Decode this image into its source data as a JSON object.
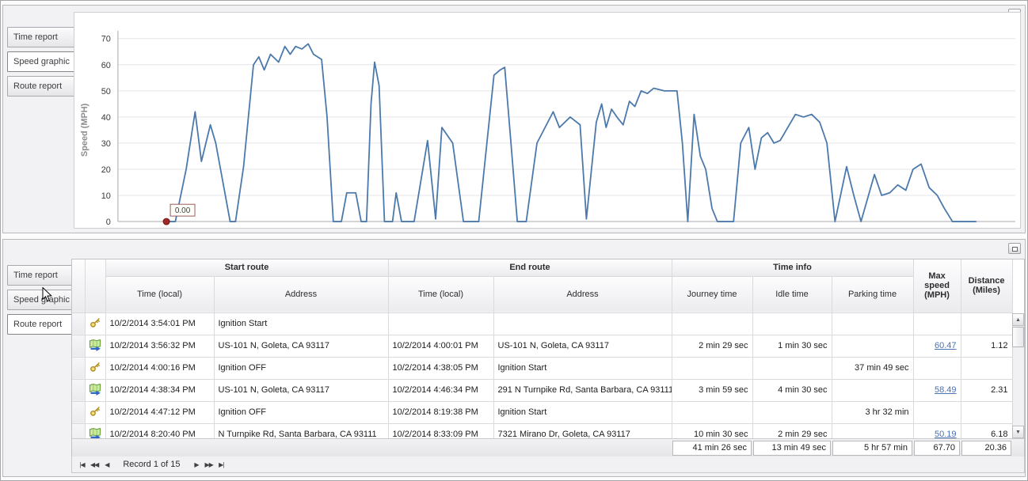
{
  "top_panel": {
    "tabs": [
      {
        "label": "Time report",
        "selected": false
      },
      {
        "label": "Speed graphic",
        "selected": true
      },
      {
        "label": "Route report",
        "selected": false
      }
    ]
  },
  "chart_data": {
    "type": "line",
    "title": "",
    "xlabel": "",
    "ylabel": "Speed (MPH)",
    "ylim": [
      0,
      70
    ],
    "yticks": [
      0,
      10,
      20,
      30,
      40,
      50,
      60,
      70
    ],
    "grid": true,
    "legend": "none",
    "line_color": "#4b79ab",
    "annotation": {
      "label": "0.00",
      "x": 0.054,
      "y": 0,
      "marker_color": "#a32828"
    },
    "points": [
      [
        0.052,
        0
      ],
      [
        0.064,
        0
      ],
      [
        0.076,
        20
      ],
      [
        0.086,
        42
      ],
      [
        0.093,
        23
      ],
      [
        0.103,
        37
      ],
      [
        0.109,
        30
      ],
      [
        0.125,
        0
      ],
      [
        0.131,
        0
      ],
      [
        0.14,
        21
      ],
      [
        0.151,
        60
      ],
      [
        0.157,
        63
      ],
      [
        0.163,
        58
      ],
      [
        0.17,
        64
      ],
      [
        0.179,
        61
      ],
      [
        0.186,
        67
      ],
      [
        0.192,
        64
      ],
      [
        0.198,
        67
      ],
      [
        0.205,
        66
      ],
      [
        0.212,
        68
      ],
      [
        0.218,
        64
      ],
      [
        0.227,
        62
      ],
      [
        0.233,
        40
      ],
      [
        0.24,
        0
      ],
      [
        0.249,
        0
      ],
      [
        0.255,
        11
      ],
      [
        0.265,
        11
      ],
      [
        0.271,
        0
      ],
      [
        0.277,
        0
      ],
      [
        0.282,
        45
      ],
      [
        0.286,
        61
      ],
      [
        0.291,
        52
      ],
      [
        0.297,
        0
      ],
      [
        0.306,
        0
      ],
      [
        0.31,
        11
      ],
      [
        0.316,
        0
      ],
      [
        0.33,
        0
      ],
      [
        0.345,
        31
      ],
      [
        0.354,
        1
      ],
      [
        0.361,
        36
      ],
      [
        0.373,
        30
      ],
      [
        0.385,
        0
      ],
      [
        0.402,
        0
      ],
      [
        0.419,
        56
      ],
      [
        0.426,
        58
      ],
      [
        0.431,
        59
      ],
      [
        0.438,
        30
      ],
      [
        0.445,
        0
      ],
      [
        0.455,
        0
      ],
      [
        0.467,
        30
      ],
      [
        0.485,
        42
      ],
      [
        0.492,
        36
      ],
      [
        0.504,
        40
      ],
      [
        0.515,
        37
      ],
      [
        0.522,
        1
      ],
      [
        0.533,
        38
      ],
      [
        0.539,
        45
      ],
      [
        0.544,
        36
      ],
      [
        0.55,
        43
      ],
      [
        0.556,
        40
      ],
      [
        0.563,
        37
      ],
      [
        0.57,
        46
      ],
      [
        0.576,
        44
      ],
      [
        0.583,
        50
      ],
      [
        0.59,
        49
      ],
      [
        0.597,
        51
      ],
      [
        0.609,
        50
      ],
      [
        0.623,
        50
      ],
      [
        0.629,
        30
      ],
      [
        0.635,
        0
      ],
      [
        0.642,
        41
      ],
      [
        0.649,
        25
      ],
      [
        0.655,
        20
      ],
      [
        0.662,
        5
      ],
      [
        0.668,
        0
      ],
      [
        0.686,
        0
      ],
      [
        0.694,
        30
      ],
      [
        0.703,
        36
      ],
      [
        0.71,
        20
      ],
      [
        0.717,
        32
      ],
      [
        0.724,
        34
      ],
      [
        0.731,
        30
      ],
      [
        0.738,
        31
      ],
      [
        0.755,
        41
      ],
      [
        0.764,
        40
      ],
      [
        0.773,
        41
      ],
      [
        0.782,
        38
      ],
      [
        0.79,
        30
      ],
      [
        0.799,
        0
      ],
      [
        0.812,
        21
      ],
      [
        0.82,
        10
      ],
      [
        0.828,
        0
      ],
      [
        0.843,
        18
      ],
      [
        0.851,
        10
      ],
      [
        0.86,
        11
      ],
      [
        0.869,
        14
      ],
      [
        0.878,
        12
      ],
      [
        0.886,
        20
      ],
      [
        0.895,
        22
      ],
      [
        0.904,
        13
      ],
      [
        0.913,
        10
      ],
      [
        0.921,
        5
      ],
      [
        0.93,
        0
      ],
      [
        0.956,
        0
      ]
    ]
  },
  "bottom_panel": {
    "tabs": [
      {
        "label": "Time report",
        "selected": false
      },
      {
        "label": "Speed graphic",
        "selected": false
      },
      {
        "label": "Route report",
        "selected": true
      }
    ],
    "grid": {
      "group_headers": [
        "Start route",
        "End route",
        "Time info"
      ],
      "columns": [
        "Time (local)",
        "Address",
        "Time (local)",
        "Address",
        "Journey time",
        "Idle time",
        "Parking time",
        "Max speed\n(MPH)",
        "Distance\n(Miles)"
      ],
      "rows": [
        {
          "icon": "key",
          "start_time": "10/2/2014 3:54:01 PM",
          "start_address": "Ignition Start",
          "end_time": "",
          "end_address": "",
          "journey": "",
          "idle": "",
          "parking": "",
          "max_speed": "",
          "distance": ""
        },
        {
          "icon": "route",
          "start_time": "10/2/2014 3:56:32 PM",
          "start_address": "US-101 N, Goleta, CA 93117",
          "end_time": "10/2/2014 4:00:01 PM",
          "end_address": "US-101 N, Goleta, CA 93117",
          "journey": "2 min 29 sec",
          "idle": "1 min 30 sec",
          "parking": "",
          "max_speed": "60.47",
          "distance": "1.12"
        },
        {
          "icon": "key",
          "start_time": "10/2/2014 4:00:16 PM",
          "start_address": "Ignition OFF",
          "end_time": "10/2/2014 4:38:05 PM",
          "end_address": "Ignition Start",
          "journey": "",
          "idle": "",
          "parking": "37 min 49 sec",
          "max_speed": "",
          "distance": ""
        },
        {
          "icon": "route",
          "start_time": "10/2/2014 4:38:34 PM",
          "start_address": "US-101 N, Goleta, CA 93117",
          "end_time": "10/2/2014 4:46:34 PM",
          "end_address": "291 N Turnpike Rd, Santa Barbara, CA 93111",
          "journey": "3 min 59 sec",
          "idle": "4 min 30 sec",
          "parking": "",
          "max_speed": "58.49",
          "distance": "2.31"
        },
        {
          "icon": "key",
          "start_time": "10/2/2014 4:47:12 PM",
          "start_address": "Ignition OFF",
          "end_time": "10/2/2014 8:19:38 PM",
          "end_address": "Ignition Start",
          "journey": "",
          "idle": "",
          "parking": "3 hr 32 min",
          "max_speed": "",
          "distance": ""
        },
        {
          "icon": "route",
          "start_time": "10/2/2014 8:20:40 PM",
          "start_address": "N Turnpike Rd, Santa Barbara, CA 93111",
          "end_time": "10/2/2014 8:33:09 PM",
          "end_address": "7321 Mirano Dr, Goleta, CA 93117",
          "journey": "10 min 30 sec",
          "idle": "2 min 29 sec",
          "parking": "",
          "max_speed": "50.19",
          "distance": "6.18"
        }
      ],
      "summary": {
        "journey": "41 min 26 sec",
        "idle": "13 min 49 sec",
        "parking": "5 hr 57 min",
        "max_speed": "67.70",
        "distance": "20.36"
      },
      "navigator": {
        "label": "Record 1 of 15",
        "buttons": [
          {
            "name": "first",
            "glyph": "|◀"
          },
          {
            "name": "prev-page",
            "glyph": "◀◀"
          },
          {
            "name": "prev",
            "glyph": "◀"
          },
          {
            "name": "next",
            "glyph": "▶"
          },
          {
            "name": "next-page",
            "glyph": "▶▶"
          },
          {
            "name": "last",
            "glyph": "▶|"
          }
        ]
      }
    }
  }
}
